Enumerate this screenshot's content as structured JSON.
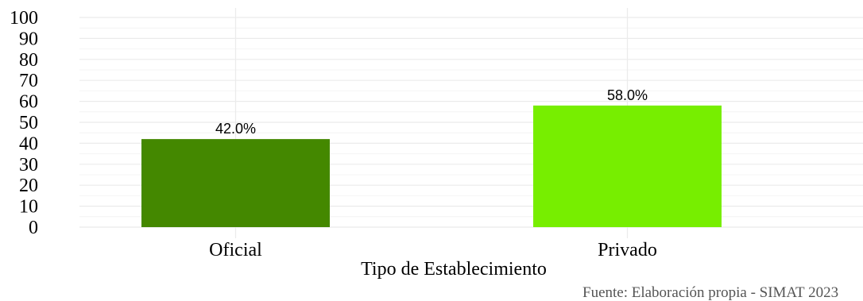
{
  "chart_data": {
    "type": "bar",
    "categories": [
      "Oficial",
      "Privado"
    ],
    "values": [
      42.0,
      58.0
    ],
    "data_labels": [
      "42.0%",
      "58.0%"
    ],
    "colors": [
      "#448800",
      "#77ee00"
    ],
    "xlabel": "Tipo de Establecimiento",
    "ylabel": "",
    "ylim": [
      0,
      100
    ],
    "yticks": [
      0,
      10,
      20,
      30,
      40,
      50,
      60,
      70,
      80,
      90,
      100
    ],
    "grid": true,
    "legend": "none"
  },
  "caption": "Fuente: Elaboración propia - SIMAT 2023"
}
